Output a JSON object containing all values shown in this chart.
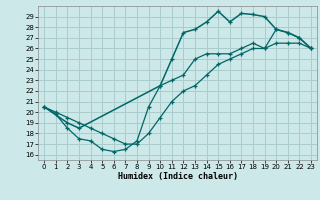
{
  "title": "",
  "xlabel": "Humidex (Indice chaleur)",
  "ylabel": "",
  "bg_color": "#cce8e8",
  "grid_color": "#aacccc",
  "line_color": "#006666",
  "xlim": [
    -0.5,
    23.5
  ],
  "ylim": [
    15.5,
    30.0
  ],
  "xticks": [
    0,
    1,
    2,
    3,
    4,
    5,
    6,
    7,
    8,
    9,
    10,
    11,
    12,
    13,
    14,
    15,
    16,
    17,
    18,
    19,
    20,
    21,
    22,
    23
  ],
  "yticks": [
    16,
    17,
    18,
    19,
    20,
    21,
    22,
    23,
    24,
    25,
    26,
    27,
    28,
    29
  ],
  "line_diag_x": [
    0,
    1,
    2,
    3,
    4,
    5,
    6,
    7,
    8,
    9,
    10,
    11,
    12,
    13,
    14,
    15,
    16,
    17,
    18,
    19,
    20,
    21,
    22,
    23
  ],
  "line_diag_y": [
    20.5,
    20.0,
    19.5,
    19.0,
    18.5,
    18.0,
    17.5,
    17.0,
    17.0,
    18.0,
    19.5,
    21.0,
    22.0,
    22.5,
    23.5,
    24.5,
    25.0,
    25.5,
    26.0,
    26.0,
    26.5,
    26.5,
    26.5,
    26.0
  ],
  "line_upper_x": [
    0,
    2,
    3,
    10,
    11,
    12,
    13,
    14,
    15,
    16,
    17,
    18,
    19,
    20,
    21,
    22,
    23
  ],
  "line_upper_y": [
    20.5,
    19.0,
    18.5,
    22.5,
    25.0,
    27.5,
    27.8,
    28.5,
    29.5,
    28.5,
    29.3,
    29.2,
    29.0,
    27.8,
    27.5,
    27.0,
    26.0
  ],
  "line_lower_x": [
    0,
    1,
    2,
    3,
    4,
    5,
    6,
    7,
    8,
    9,
    10,
    11,
    12,
    13,
    14,
    15,
    16,
    17,
    18,
    19,
    20,
    21,
    22,
    23
  ],
  "line_lower_y": [
    20.5,
    19.8,
    18.5,
    17.5,
    17.3,
    16.5,
    16.3,
    16.5,
    17.3,
    20.5,
    22.5,
    23.0,
    23.5,
    25.0,
    25.5,
    25.5,
    25.5,
    26.0,
    26.5,
    26.0,
    27.8,
    27.5,
    27.0,
    26.0
  ]
}
